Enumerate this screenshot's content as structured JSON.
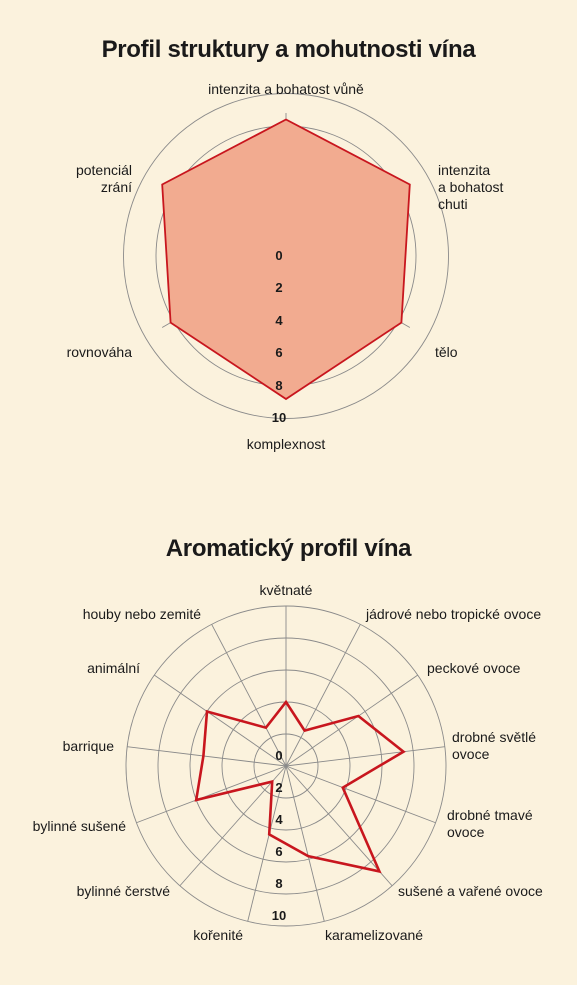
{
  "chart_data": [
    {
      "type": "radar",
      "title": "Profil struktury a mohutnosti vína",
      "rmax": 10,
      "ticks": [
        "0",
        "2",
        "4",
        "6",
        "8",
        "10"
      ],
      "axes": [
        {
          "label": [
            "intenzita a bohatost vůně"
          ],
          "value": 8.4
        },
        {
          "label": [
            "intenzita",
            "a bohatost",
            "chuti"
          ],
          "value": 8.8
        },
        {
          "label": [
            "tělo"
          ],
          "value": 8.2
        },
        {
          "label": [
            "komplexnost"
          ],
          "value": 8.8
        },
        {
          "label": [
            "rovnováha"
          ],
          "value": 8.2
        },
        {
          "label": [
            "potenciál",
            "zrání"
          ],
          "value": 8.8
        }
      ],
      "fill_color": "#f2ab90",
      "line_color": "#c8161e"
    },
    {
      "type": "radar",
      "title": "Aromatický profil vína",
      "rmax": 10,
      "ticks": [
        "0",
        "2",
        "4",
        "6",
        "8",
        "10"
      ],
      "axes": [
        {
          "label": [
            "květnaté"
          ],
          "value": 4.0
        },
        {
          "label": [
            "jádrové nebo tropické ovoce"
          ],
          "value": 2.5
        },
        {
          "label": [
            "peckové ovoce"
          ],
          "value": 5.5
        },
        {
          "label": [
            "drobné světlé",
            "ovoce"
          ],
          "value": 7.4
        },
        {
          "label": [
            "drobné tmavé",
            "ovoce"
          ],
          "value": 3.8
        },
        {
          "label": [
            "sušené a vařené ovoce"
          ],
          "value": 8.8
        },
        {
          "label": [
            "karamelizované"
          ],
          "value": 5.8
        },
        {
          "label": [
            "kořenité"
          ],
          "value": 4.4
        },
        {
          "label": [
            "bylinné čerstvé"
          ],
          "value": 1.3
        },
        {
          "label": [
            "bylinné sušené"
          ],
          "value": 6.0
        },
        {
          "label": [
            "barrique"
          ],
          "value": 5.2
        },
        {
          "label": [
            "animální"
          ],
          "value": 6.0
        },
        {
          "label": [
            "houby nebo zemité"
          ],
          "value": 2.7
        }
      ],
      "line_color": "#c8161e"
    }
  ]
}
